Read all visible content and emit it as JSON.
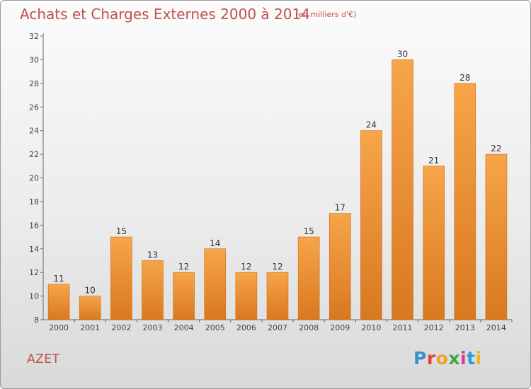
{
  "header": {
    "title": "Achats et Charges Externes 2000 à 2014",
    "subtitle": "(en milliers d'€)"
  },
  "footer": {
    "commune": "AZET",
    "brand": "Proxiti",
    "brand_colors": [
      "#3a8fd0",
      "#e0413a",
      "#f2a323",
      "#3aa843",
      "#d23f8a",
      "#2f9bd6",
      "#f0b428"
    ]
  },
  "colors": {
    "title": "#c0504d",
    "bar_top": "#f7a54a",
    "bar_bottom": "#d9781f",
    "bar_border": "#c96d1c"
  },
  "chart_data": {
    "type": "bar",
    "categories": [
      "2000",
      "2001",
      "2002",
      "2003",
      "2004",
      "2005",
      "2006",
      "2007",
      "2008",
      "2009",
      "2010",
      "2011",
      "2012",
      "2013",
      "2014"
    ],
    "values": [
      11,
      10,
      15,
      13,
      12,
      14,
      12,
      12,
      15,
      17,
      24,
      30,
      21,
      28,
      22
    ],
    "ylim": [
      8,
      32
    ],
    "yticks": [
      8,
      10,
      12,
      14,
      16,
      18,
      20,
      22,
      24,
      26,
      28,
      30,
      32
    ],
    "grid": false
  }
}
